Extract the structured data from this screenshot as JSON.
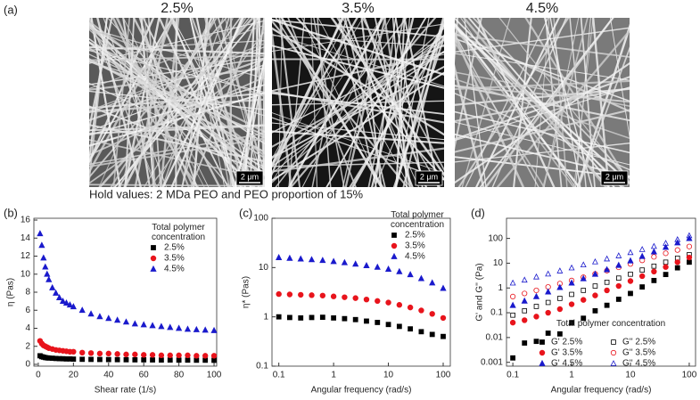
{
  "panel_labels": [
    "(a)",
    "(b)",
    "(c)",
    "(d)"
  ],
  "images": [
    {
      "title": "2.5%",
      "scale_bar": "2 μm"
    },
    {
      "title": "3.5%",
      "scale_bar": "2 μm"
    },
    {
      "title": "4.5%",
      "scale_bar": "2 μm"
    }
  ],
  "caption": "Hold values: 2 MDa PEO and PEO proportion of 15%",
  "chart_data": [
    {
      "type": "scatter",
      "xlabel": "Shear rate (1/s)",
      "ylabel": "η (Pas)",
      "legend_title": "Total polymer concentration",
      "x": [
        1,
        2,
        3,
        4,
        5,
        6,
        8,
        10,
        12,
        14,
        16,
        18,
        20,
        25,
        30,
        35,
        40,
        45,
        50,
        55,
        60,
        65,
        70,
        75,
        80,
        85,
        90,
        95,
        100
      ],
      "xlim": [
        -2.5,
        101.5
      ],
      "xticks": [
        0,
        20,
        40,
        60,
        80,
        100
      ],
      "ylim": [
        -0.2,
        16.2
      ],
      "yticks": [
        0,
        2,
        4,
        6,
        8,
        10,
        12,
        14,
        16
      ],
      "series": [
        {
          "name": "2.5%",
          "color": "#000000",
          "marker": "square",
          "filled": true,
          "values": [
            0.95,
            0.85,
            0.8,
            0.75,
            0.72,
            0.7,
            0.68,
            0.65,
            0.63,
            0.62,
            0.6,
            0.6,
            0.58,
            0.56,
            0.55,
            0.54,
            0.53,
            0.52,
            0.51,
            0.5,
            0.5,
            0.49,
            0.48,
            0.48,
            0.47,
            0.47,
            0.46,
            0.46,
            0.45
          ]
        },
        {
          "name": "3.5%",
          "color": "#e8141c",
          "marker": "circle",
          "filled": true,
          "values": [
            2.6,
            2.3,
            2.1,
            2.0,
            1.9,
            1.8,
            1.7,
            1.6,
            1.55,
            1.5,
            1.45,
            1.4,
            1.4,
            1.3,
            1.25,
            1.2,
            1.2,
            1.15,
            1.1,
            1.1,
            1.05,
            1.05,
            1.0,
            1.0,
            1.0,
            1.0,
            0.95,
            0.95,
            0.95
          ]
        },
        {
          "name": "4.5%",
          "color": "#1a1acc",
          "marker": "triangle",
          "filled": true,
          "values": [
            14.5,
            13.2,
            11.8,
            10.8,
            10.0,
            9.4,
            8.5,
            7.9,
            7.4,
            7.0,
            6.8,
            6.6,
            6.4,
            6.0,
            5.6,
            5.3,
            5.1,
            4.9,
            4.7,
            4.5,
            4.4,
            4.3,
            4.2,
            4.1,
            4.0,
            3.9,
            3.85,
            3.8,
            3.75
          ]
        }
      ]
    },
    {
      "type": "scatter",
      "log_x": true,
      "log_y": true,
      "xlabel": "Angular frequency (rad/s)",
      "ylabel": "η* (Pas)",
      "legend_title": "Total polymer concentration",
      "x": [
        0.1,
        0.158,
        0.251,
        0.398,
        0.631,
        1,
        1.585,
        2.512,
        3.981,
        6.31,
        10,
        15.85,
        25.12,
        39.81,
        63.1,
        100
      ],
      "xlim": [
        0.075,
        135
      ],
      "xticks": [
        0.1,
        1,
        10,
        100
      ],
      "ylim": [
        0.1,
        100
      ],
      "yticks": [
        0.1,
        1,
        10,
        100
      ],
      "series": [
        {
          "name": "2.5%",
          "color": "#000000",
          "marker": "square",
          "filled": true,
          "values": [
            1.0,
            0.97,
            0.95,
            0.97,
            0.98,
            0.95,
            0.92,
            0.88,
            0.82,
            0.77,
            0.7,
            0.64,
            0.57,
            0.5,
            0.44,
            0.4
          ]
        },
        {
          "name": "3.5%",
          "color": "#e8141c",
          "marker": "circle",
          "filled": true,
          "values": [
            2.9,
            2.85,
            2.8,
            2.75,
            2.7,
            2.6,
            2.5,
            2.4,
            2.25,
            2.1,
            1.95,
            1.75,
            1.55,
            1.35,
            1.15,
            0.95
          ]
        },
        {
          "name": "4.5%",
          "color": "#1a1acc",
          "marker": "triangle",
          "filled": true,
          "values": [
            16,
            15.5,
            15,
            14.5,
            14,
            13.3,
            12.6,
            11.8,
            11,
            10.2,
            9.3,
            8.3,
            7.2,
            6.0,
            4.9,
            3.8
          ]
        }
      ]
    },
    {
      "type": "scatter",
      "log_x": true,
      "log_y": true,
      "xlabel": "Angular frequency (rad/s)",
      "ylabel": "G' and G'' (Pa)",
      "legend_title": "Total polymer concentration",
      "x": [
        0.1,
        0.158,
        0.251,
        0.398,
        0.631,
        1,
        1.585,
        2.512,
        3.981,
        6.31,
        10,
        15.85,
        25.12,
        39.81,
        63.1,
        100
      ],
      "xlim": [
        0.078,
        128
      ],
      "xticks": [
        0.1,
        1,
        10,
        100
      ],
      "ylim": [
        0.0007,
        650
      ],
      "yticks": [
        0.001,
        0.01,
        0.1,
        1,
        10,
        100
      ],
      "series": [
        {
          "name": "G' 2.5%",
          "color": "#000000",
          "marker": "square",
          "filled": true,
          "values": [
            0.0015,
            0.006,
            0.007,
            0.015,
            0.014,
            0.04,
            0.06,
            0.12,
            0.2,
            0.35,
            0.6,
            1.1,
            2,
            3.5,
            6.5,
            11
          ]
        },
        {
          "name": "G'' 2.5%",
          "color": "#000000",
          "marker": "square",
          "filled": false,
          "values": [
            0.08,
            0.12,
            0.18,
            0.26,
            0.38,
            0.55,
            0.8,
            1.2,
            1.7,
            2.5,
            3.6,
            5.3,
            7.6,
            11,
            16,
            22
          ]
        },
        {
          "name": "G' 3.5%",
          "color": "#e8141c",
          "marker": "circle",
          "filled": true,
          "values": [
            0.04,
            0.05,
            0.07,
            0.1,
            0.14,
            0.22,
            0.33,
            0.5,
            0.8,
            1.2,
            1.9,
            3,
            4.6,
            7,
            11,
            17
          ]
        },
        {
          "name": "G'' 3.5%",
          "color": "#e8141c",
          "marker": "circle",
          "filled": false,
          "values": [
            0.45,
            0.6,
            0.8,
            1.1,
            1.5,
            2,
            2.7,
            3.7,
            5,
            6.8,
            9.3,
            13,
            18,
            25,
            34,
            47
          ]
        },
        {
          "name": "G' 4.5%",
          "color": "#1a1acc",
          "marker": "triangle",
          "filled": true,
          "values": [
            0.2,
            0.3,
            0.45,
            0.7,
            1.05,
            1.6,
            2.4,
            3.6,
            5.5,
            8.3,
            12.5,
            19,
            29,
            44,
            67,
            100
          ]
        },
        {
          "name": "G'' 4.5%",
          "color": "#1a1acc",
          "marker": "triangle",
          "filled": false,
          "values": [
            1.6,
            2.1,
            2.8,
            3.7,
            4.9,
            6.5,
            8.6,
            11.4,
            15,
            20,
            27,
            36,
            48,
            64,
            90,
            130
          ]
        }
      ]
    }
  ]
}
